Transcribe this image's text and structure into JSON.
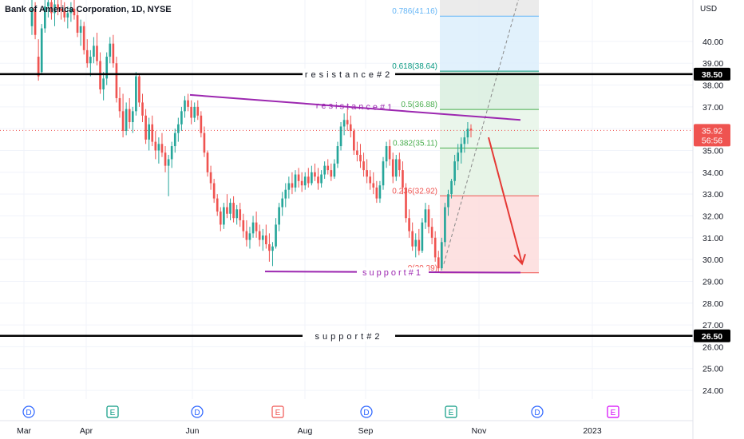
{
  "header": {
    "title": "Bank of America Corporation, 1D, NYSE",
    "currency": "USD"
  },
  "colors": {
    "up": "#26a69a",
    "down": "#ef5350",
    "trendline": "#9c27b0",
    "level_line": "#000000",
    "arrow": "#e53935",
    "fib_0": "#ef5350",
    "fib_236": "#ef5350",
    "fib_382": "#4caf50",
    "fib_5": "#4caf50",
    "fib_618": "#089981",
    "fib_786": "#64b5f6"
  },
  "chart_data": {
    "type": "candlestick",
    "title": "Bank of America Corporation, 1D, NYSE",
    "ylabel": "USD",
    "ylim": [
      23.6,
      41.9
    ],
    "y_ticks": [
      "24.00",
      "25.00",
      "26.00",
      "27.00",
      "28.00",
      "29.00",
      "30.00",
      "31.00",
      "32.00",
      "33.00",
      "34.00",
      "35.00",
      "36.00",
      "37.00",
      "38.00",
      "39.00",
      "40.00"
    ],
    "x_ticks": [
      "Mar",
      "Apr",
      "Jun",
      "Aug",
      "Sep",
      "Nov",
      "2023"
    ],
    "last_price": "35.92",
    "countdown": "56:56",
    "key_levels": [
      {
        "label": "resistance#2",
        "value": 38.5,
        "tag": "38.50"
      },
      {
        "label": "support#2",
        "value": 26.5,
        "tag": "26.50"
      }
    ],
    "trendlines": [
      {
        "label": "resistance#1",
        "from": 37.55,
        "to": 36.4
      },
      {
        "label": "support#1",
        "from": 29.45,
        "to": 29.4
      }
    ],
    "fibonacci": [
      {
        "ratio": "0",
        "value": 29.39,
        "label": "0(29.39)"
      },
      {
        "ratio": "0.236",
        "value": 32.92,
        "label": "0.236(32.92)"
      },
      {
        "ratio": "0.382",
        "value": 35.11,
        "label": "0.382(35.11)"
      },
      {
        "ratio": "0.5",
        "value": 36.88,
        "label": "0.5(36.88)"
      },
      {
        "ratio": "0.618",
        "value": 38.64,
        "label": "0.618(38.64)"
      },
      {
        "ratio": "0.786",
        "value": 41.16,
        "label": "0.786(41.16)"
      }
    ],
    "events": [
      "D",
      "E",
      "D",
      "E",
      "D",
      "E",
      "D",
      "E"
    ],
    "candles": [
      {
        "o": 40.7,
        "h": 42.0,
        "l": 40.3,
        "c": 41.5
      },
      {
        "o": 41.5,
        "h": 41.8,
        "l": 40.1,
        "c": 40.3
      },
      {
        "o": 39.3,
        "h": 40.1,
        "l": 38.2,
        "c": 38.4
      },
      {
        "o": 38.6,
        "h": 40.8,
        "l": 38.5,
        "c": 40.6
      },
      {
        "o": 40.6,
        "h": 41.9,
        "l": 40.4,
        "c": 41.6
      },
      {
        "o": 41.6,
        "h": 42.0,
        "l": 41.1,
        "c": 41.8
      },
      {
        "o": 41.8,
        "h": 42.0,
        "l": 41.0,
        "c": 41.3
      },
      {
        "o": 41.3,
        "h": 41.9,
        "l": 40.7,
        "c": 41.7
      },
      {
        "o": 41.7,
        "h": 42.0,
        "l": 41.2,
        "c": 41.5
      },
      {
        "o": 41.5,
        "h": 41.9,
        "l": 41.0,
        "c": 41.4
      },
      {
        "o": 41.4,
        "h": 41.8,
        "l": 40.9,
        "c": 41.1
      },
      {
        "o": 41.1,
        "h": 41.6,
        "l": 40.6,
        "c": 41.3
      },
      {
        "o": 41.3,
        "h": 41.8,
        "l": 40.9,
        "c": 41.5
      },
      {
        "o": 41.5,
        "h": 41.9,
        "l": 41.0,
        "c": 41.2
      },
      {
        "o": 41.2,
        "h": 41.5,
        "l": 40.2,
        "c": 40.4
      },
      {
        "o": 40.4,
        "h": 41.0,
        "l": 39.8,
        "c": 40.7
      },
      {
        "o": 40.7,
        "h": 40.9,
        "l": 39.4,
        "c": 39.6
      },
      {
        "o": 39.6,
        "h": 40.1,
        "l": 38.8,
        "c": 39.0
      },
      {
        "o": 39.0,
        "h": 39.6,
        "l": 38.4,
        "c": 39.3
      },
      {
        "o": 39.3,
        "h": 40.2,
        "l": 39.0,
        "c": 39.8
      },
      {
        "o": 39.8,
        "h": 40.4,
        "l": 38.9,
        "c": 39.1
      },
      {
        "o": 39.1,
        "h": 39.5,
        "l": 37.6,
        "c": 37.8
      },
      {
        "o": 37.8,
        "h": 38.6,
        "l": 37.3,
        "c": 38.3
      },
      {
        "o": 38.3,
        "h": 39.5,
        "l": 38.0,
        "c": 39.3
      },
      {
        "o": 39.3,
        "h": 40.2,
        "l": 39.0,
        "c": 39.9
      },
      {
        "o": 39.9,
        "h": 40.3,
        "l": 38.8,
        "c": 39.0
      },
      {
        "o": 39.0,
        "h": 39.3,
        "l": 37.2,
        "c": 37.4
      },
      {
        "o": 37.4,
        "h": 37.9,
        "l": 36.5,
        "c": 36.8
      },
      {
        "o": 36.8,
        "h": 37.6,
        "l": 35.6,
        "c": 35.9
      },
      {
        "o": 35.9,
        "h": 37.2,
        "l": 35.7,
        "c": 36.9
      },
      {
        "o": 36.9,
        "h": 37.4,
        "l": 36.0,
        "c": 36.3
      },
      {
        "o": 36.3,
        "h": 37.0,
        "l": 35.8,
        "c": 36.8
      },
      {
        "o": 36.8,
        "h": 38.6,
        "l": 36.6,
        "c": 38.4
      },
      {
        "o": 38.4,
        "h": 38.5,
        "l": 37.0,
        "c": 37.2
      },
      {
        "o": 37.2,
        "h": 37.6,
        "l": 36.3,
        "c": 36.6
      },
      {
        "o": 36.6,
        "h": 36.9,
        "l": 35.3,
        "c": 35.5
      },
      {
        "o": 35.5,
        "h": 36.5,
        "l": 35.0,
        "c": 36.2
      },
      {
        "o": 36.2,
        "h": 36.6,
        "l": 35.2,
        "c": 35.4
      },
      {
        "o": 35.4,
        "h": 35.9,
        "l": 34.6,
        "c": 35.0
      },
      {
        "o": 35.0,
        "h": 35.6,
        "l": 34.4,
        "c": 35.3
      },
      {
        "o": 35.3,
        "h": 35.8,
        "l": 34.7,
        "c": 34.9
      },
      {
        "o": 34.9,
        "h": 35.2,
        "l": 34.0,
        "c": 34.3
      },
      {
        "o": 34.3,
        "h": 34.8,
        "l": 32.9,
        "c": 34.6
      },
      {
        "o": 34.6,
        "h": 35.4,
        "l": 34.2,
        "c": 35.2
      },
      {
        "o": 35.2,
        "h": 36.0,
        "l": 34.9,
        "c": 35.8
      },
      {
        "o": 35.8,
        "h": 36.5,
        "l": 35.4,
        "c": 36.2
      },
      {
        "o": 36.2,
        "h": 37.0,
        "l": 35.9,
        "c": 36.8
      },
      {
        "o": 36.8,
        "h": 37.5,
        "l": 36.5,
        "c": 37.3
      },
      {
        "o": 37.3,
        "h": 37.6,
        "l": 36.8,
        "c": 37.0
      },
      {
        "o": 37.0,
        "h": 37.3,
        "l": 36.2,
        "c": 36.5
      },
      {
        "o": 36.5,
        "h": 37.2,
        "l": 36.3,
        "c": 37.0
      },
      {
        "o": 37.0,
        "h": 37.3,
        "l": 36.4,
        "c": 36.6
      },
      {
        "o": 36.6,
        "h": 36.8,
        "l": 35.6,
        "c": 35.8
      },
      {
        "o": 35.8,
        "h": 36.1,
        "l": 34.7,
        "c": 34.9
      },
      {
        "o": 34.9,
        "h": 35.0,
        "l": 33.8,
        "c": 34.0
      },
      {
        "o": 34.0,
        "h": 34.3,
        "l": 33.2,
        "c": 33.5
      },
      {
        "o": 33.5,
        "h": 33.7,
        "l": 32.6,
        "c": 32.8
      },
      {
        "o": 32.8,
        "h": 33.0,
        "l": 32.0,
        "c": 32.2
      },
      {
        "o": 32.2,
        "h": 32.4,
        "l": 31.3,
        "c": 31.6
      },
      {
        "o": 31.6,
        "h": 32.6,
        "l": 31.4,
        "c": 32.4
      },
      {
        "o": 32.4,
        "h": 33.0,
        "l": 31.9,
        "c": 32.1
      },
      {
        "o": 32.1,
        "h": 32.8,
        "l": 31.8,
        "c": 32.6
      },
      {
        "o": 32.6,
        "h": 32.9,
        "l": 31.7,
        "c": 31.9
      },
      {
        "o": 31.9,
        "h": 32.5,
        "l": 31.6,
        "c": 32.3
      },
      {
        "o": 32.3,
        "h": 32.6,
        "l": 31.5,
        "c": 31.8
      },
      {
        "o": 31.8,
        "h": 32.1,
        "l": 31.0,
        "c": 31.3
      },
      {
        "o": 31.3,
        "h": 31.8,
        "l": 30.6,
        "c": 30.9
      },
      {
        "o": 30.9,
        "h": 31.5,
        "l": 30.5,
        "c": 31.2
      },
      {
        "o": 31.2,
        "h": 32.0,
        "l": 31.0,
        "c": 31.7
      },
      {
        "o": 31.7,
        "h": 32.2,
        "l": 31.0,
        "c": 31.3
      },
      {
        "o": 31.3,
        "h": 31.6,
        "l": 30.6,
        "c": 30.9
      },
      {
        "o": 30.9,
        "h": 31.4,
        "l": 30.4,
        "c": 31.1
      },
      {
        "o": 31.1,
        "h": 31.6,
        "l": 30.5,
        "c": 30.7
      },
      {
        "o": 30.7,
        "h": 31.2,
        "l": 29.9,
        "c": 30.4
      },
      {
        "o": 30.4,
        "h": 30.8,
        "l": 29.7,
        "c": 30.6
      },
      {
        "o": 30.6,
        "h": 31.9,
        "l": 30.5,
        "c": 31.6
      },
      {
        "o": 31.6,
        "h": 32.6,
        "l": 31.3,
        "c": 32.4
      },
      {
        "o": 32.4,
        "h": 33.1,
        "l": 32.0,
        "c": 32.8
      },
      {
        "o": 32.8,
        "h": 33.5,
        "l": 32.4,
        "c": 33.2
      },
      {
        "o": 33.2,
        "h": 33.8,
        "l": 32.8,
        "c": 33.5
      },
      {
        "o": 33.5,
        "h": 34.0,
        "l": 33.0,
        "c": 33.3
      },
      {
        "o": 33.3,
        "h": 34.1,
        "l": 33.1,
        "c": 33.9
      },
      {
        "o": 33.9,
        "h": 34.2,
        "l": 33.3,
        "c": 33.6
      },
      {
        "o": 33.6,
        "h": 34.0,
        "l": 33.1,
        "c": 33.4
      },
      {
        "o": 33.4,
        "h": 34.0,
        "l": 33.2,
        "c": 33.8
      },
      {
        "o": 33.8,
        "h": 34.2,
        "l": 33.3,
        "c": 33.5
      },
      {
        "o": 33.5,
        "h": 34.3,
        "l": 33.4,
        "c": 34.0
      },
      {
        "o": 34.0,
        "h": 34.4,
        "l": 33.6,
        "c": 33.8
      },
      {
        "o": 33.8,
        "h": 34.2,
        "l": 33.2,
        "c": 33.5
      },
      {
        "o": 33.5,
        "h": 34.1,
        "l": 33.3,
        "c": 33.9
      },
      {
        "o": 33.9,
        "h": 34.5,
        "l": 33.7,
        "c": 34.3
      },
      {
        "o": 34.3,
        "h": 34.6,
        "l": 33.9,
        "c": 34.1
      },
      {
        "o": 34.1,
        "h": 34.4,
        "l": 33.6,
        "c": 33.8
      },
      {
        "o": 33.8,
        "h": 34.6,
        "l": 33.7,
        "c": 34.4
      },
      {
        "o": 34.4,
        "h": 35.4,
        "l": 34.2,
        "c": 35.2
      },
      {
        "o": 35.2,
        "h": 36.3,
        "l": 35.0,
        "c": 36.1
      },
      {
        "o": 36.1,
        "h": 36.7,
        "l": 35.7,
        "c": 36.4
      },
      {
        "o": 36.4,
        "h": 36.9,
        "l": 35.9,
        "c": 36.2
      },
      {
        "o": 36.2,
        "h": 36.6,
        "l": 35.6,
        "c": 35.9
      },
      {
        "o": 35.9,
        "h": 36.0,
        "l": 34.8,
        "c": 35.0
      },
      {
        "o": 35.0,
        "h": 35.4,
        "l": 34.5,
        "c": 34.8
      },
      {
        "o": 34.8,
        "h": 35.3,
        "l": 34.2,
        "c": 34.5
      },
      {
        "o": 34.5,
        "h": 34.9,
        "l": 33.8,
        "c": 34.1
      },
      {
        "o": 34.1,
        "h": 34.6,
        "l": 33.5,
        "c": 33.8
      },
      {
        "o": 33.8,
        "h": 34.1,
        "l": 33.2,
        "c": 33.5
      },
      {
        "o": 33.5,
        "h": 34.0,
        "l": 33.0,
        "c": 33.3
      },
      {
        "o": 33.3,
        "h": 33.6,
        "l": 32.6,
        "c": 32.8
      },
      {
        "o": 32.8,
        "h": 33.6,
        "l": 32.6,
        "c": 33.4
      },
      {
        "o": 33.4,
        "h": 34.7,
        "l": 33.2,
        "c": 34.5
      },
      {
        "o": 34.5,
        "h": 35.4,
        "l": 34.2,
        "c": 35.2
      },
      {
        "o": 35.2,
        "h": 35.5,
        "l": 34.3,
        "c": 34.6
      },
      {
        "o": 34.6,
        "h": 34.9,
        "l": 33.5,
        "c": 33.8
      },
      {
        "o": 33.8,
        "h": 34.8,
        "l": 33.6,
        "c": 34.6
      },
      {
        "o": 34.6,
        "h": 34.9,
        "l": 33.8,
        "c": 34.1
      },
      {
        "o": 34.1,
        "h": 34.5,
        "l": 33.0,
        "c": 33.3
      },
      {
        "o": 33.3,
        "h": 33.5,
        "l": 31.7,
        "c": 31.9
      },
      {
        "o": 31.9,
        "h": 32.3,
        "l": 31.0,
        "c": 31.3
      },
      {
        "o": 31.3,
        "h": 31.7,
        "l": 30.4,
        "c": 30.6
      },
      {
        "o": 30.6,
        "h": 31.2,
        "l": 30.1,
        "c": 30.9
      },
      {
        "o": 30.9,
        "h": 31.4,
        "l": 30.2,
        "c": 30.4
      },
      {
        "o": 30.4,
        "h": 31.9,
        "l": 30.3,
        "c": 31.7
      },
      {
        "o": 31.7,
        "h": 32.6,
        "l": 31.4,
        "c": 32.3
      },
      {
        "o": 32.3,
        "h": 32.5,
        "l": 31.2,
        "c": 31.5
      },
      {
        "o": 31.5,
        "h": 31.9,
        "l": 30.7,
        "c": 31.0
      },
      {
        "o": 31.0,
        "h": 31.3,
        "l": 29.9,
        "c": 30.1
      },
      {
        "o": 30.1,
        "h": 30.4,
        "l": 29.4,
        "c": 29.6
      },
      {
        "o": 29.6,
        "h": 31.0,
        "l": 29.5,
        "c": 30.8
      },
      {
        "o": 30.8,
        "h": 32.6,
        "l": 30.6,
        "c": 32.4
      },
      {
        "o": 32.4,
        "h": 33.2,
        "l": 32.0,
        "c": 33.0
      },
      {
        "o": 33.0,
        "h": 33.7,
        "l": 32.8,
        "c": 33.6
      },
      {
        "o": 33.6,
        "h": 34.8,
        "l": 33.4,
        "c": 34.5
      },
      {
        "o": 34.5,
        "h": 35.3,
        "l": 34.1,
        "c": 34.9
      },
      {
        "o": 34.9,
        "h": 35.6,
        "l": 34.4,
        "c": 35.3
      },
      {
        "o": 35.3,
        "h": 35.9,
        "l": 34.9,
        "c": 35.6
      },
      {
        "o": 35.6,
        "h": 36.3,
        "l": 35.3,
        "c": 36.0
      },
      {
        "o": 36.0,
        "h": 36.2,
        "l": 35.6,
        "c": 35.92
      }
    ]
  }
}
